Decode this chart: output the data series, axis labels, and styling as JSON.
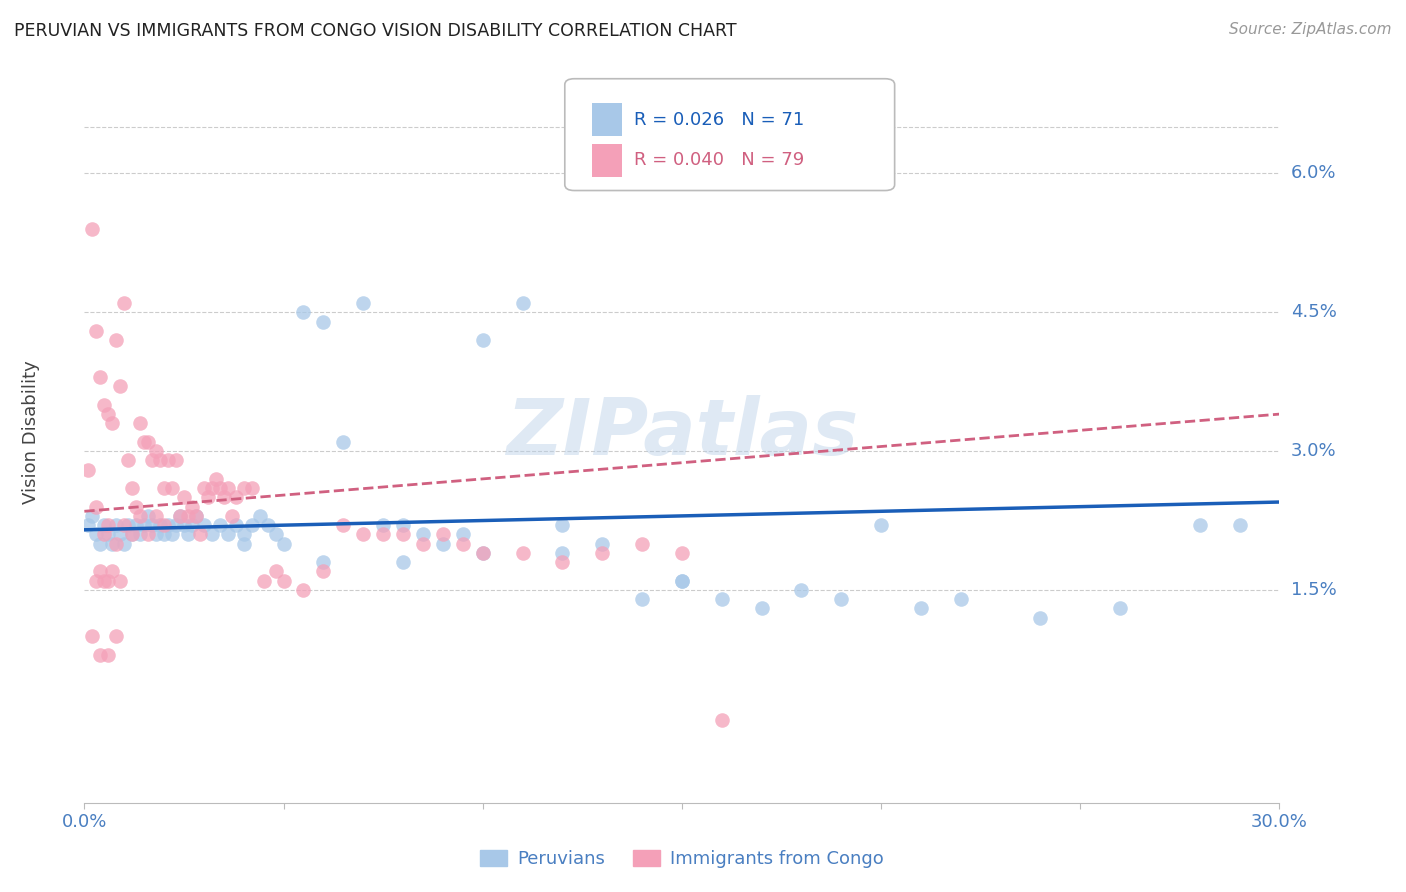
{
  "title": "PERUVIAN VS IMMIGRANTS FROM CONGO VISION DISABILITY CORRELATION CHART",
  "source": "Source: ZipAtlas.com",
  "ylabel": "Vision Disability",
  "ytick_labels": [
    "6.0%",
    "4.5%",
    "3.0%",
    "1.5%"
  ],
  "ytick_values": [
    0.06,
    0.045,
    0.03,
    0.015
  ],
  "xlim": [
    0.0,
    0.3
  ],
  "ylim": [
    -0.008,
    0.072
  ],
  "legend_blue_r": "0.026",
  "legend_blue_n": "71",
  "legend_pink_r": "0.040",
  "legend_pink_n": "79",
  "blue_color": "#a8c8e8",
  "pink_color": "#f4a0b8",
  "blue_line_color": "#1a5eb8",
  "pink_line_color": "#d06080",
  "watermark": "ZIPatlas",
  "blue_line_x0": 0.0,
  "blue_line_x1": 0.3,
  "blue_line_y0": 0.0215,
  "blue_line_y1": 0.0245,
  "pink_line_x0": 0.0,
  "pink_line_x1": 0.3,
  "pink_line_y0": 0.0235,
  "pink_line_y1": 0.034,
  "blue_scatter_x": [
    0.001,
    0.002,
    0.003,
    0.004,
    0.005,
    0.006,
    0.007,
    0.008,
    0.009,
    0.01,
    0.011,
    0.012,
    0.013,
    0.014,
    0.015,
    0.016,
    0.017,
    0.018,
    0.019,
    0.02,
    0.021,
    0.022,
    0.023,
    0.024,
    0.025,
    0.026,
    0.027,
    0.028,
    0.03,
    0.032,
    0.034,
    0.036,
    0.038,
    0.04,
    0.042,
    0.044,
    0.046,
    0.048,
    0.05,
    0.055,
    0.06,
    0.065,
    0.07,
    0.075,
    0.08,
    0.085,
    0.09,
    0.095,
    0.1,
    0.11,
    0.12,
    0.13,
    0.14,
    0.15,
    0.16,
    0.17,
    0.18,
    0.19,
    0.2,
    0.21,
    0.22,
    0.24,
    0.26,
    0.28,
    0.29,
    0.15,
    0.12,
    0.1,
    0.08,
    0.06,
    0.04
  ],
  "blue_scatter_y": [
    0.022,
    0.023,
    0.021,
    0.02,
    0.022,
    0.021,
    0.02,
    0.022,
    0.021,
    0.02,
    0.022,
    0.021,
    0.022,
    0.021,
    0.022,
    0.023,
    0.022,
    0.021,
    0.022,
    0.021,
    0.022,
    0.021,
    0.022,
    0.023,
    0.022,
    0.021,
    0.022,
    0.023,
    0.022,
    0.021,
    0.022,
    0.021,
    0.022,
    0.021,
    0.022,
    0.023,
    0.022,
    0.021,
    0.02,
    0.045,
    0.044,
    0.031,
    0.046,
    0.022,
    0.022,
    0.021,
    0.02,
    0.021,
    0.042,
    0.046,
    0.022,
    0.02,
    0.014,
    0.016,
    0.014,
    0.013,
    0.015,
    0.014,
    0.022,
    0.013,
    0.014,
    0.012,
    0.013,
    0.022,
    0.022,
    0.016,
    0.019,
    0.019,
    0.018,
    0.018,
    0.02
  ],
  "pink_scatter_x": [
    0.001,
    0.002,
    0.003,
    0.004,
    0.005,
    0.006,
    0.007,
    0.008,
    0.009,
    0.01,
    0.011,
    0.012,
    0.013,
    0.014,
    0.015,
    0.016,
    0.017,
    0.018,
    0.019,
    0.02,
    0.021,
    0.022,
    0.023,
    0.024,
    0.025,
    0.026,
    0.027,
    0.028,
    0.029,
    0.03,
    0.031,
    0.032,
    0.033,
    0.034,
    0.035,
    0.036,
    0.037,
    0.038,
    0.04,
    0.042,
    0.045,
    0.048,
    0.05,
    0.055,
    0.06,
    0.065,
    0.07,
    0.075,
    0.08,
    0.085,
    0.09,
    0.095,
    0.1,
    0.11,
    0.12,
    0.13,
    0.14,
    0.15,
    0.16,
    0.003,
    0.005,
    0.006,
    0.008,
    0.01,
    0.012,
    0.014,
    0.016,
    0.018,
    0.02,
    0.003,
    0.005,
    0.004,
    0.006,
    0.007,
    0.009,
    0.002,
    0.004,
    0.006,
    0.008
  ],
  "pink_scatter_y": [
    0.028,
    0.054,
    0.043,
    0.038,
    0.035,
    0.034,
    0.033,
    0.042,
    0.037,
    0.046,
    0.029,
    0.026,
    0.024,
    0.033,
    0.031,
    0.031,
    0.029,
    0.03,
    0.029,
    0.026,
    0.029,
    0.026,
    0.029,
    0.023,
    0.025,
    0.023,
    0.024,
    0.023,
    0.021,
    0.026,
    0.025,
    0.026,
    0.027,
    0.026,
    0.025,
    0.026,
    0.023,
    0.025,
    0.026,
    0.026,
    0.016,
    0.017,
    0.016,
    0.015,
    0.017,
    0.022,
    0.021,
    0.021,
    0.021,
    0.02,
    0.021,
    0.02,
    0.019,
    0.019,
    0.018,
    0.019,
    0.02,
    0.019,
    0.001,
    0.024,
    0.021,
    0.022,
    0.02,
    0.022,
    0.021,
    0.023,
    0.021,
    0.023,
    0.022,
    0.016,
    0.016,
    0.017,
    0.016,
    0.017,
    0.016,
    0.01,
    0.008,
    0.008,
    0.01
  ]
}
